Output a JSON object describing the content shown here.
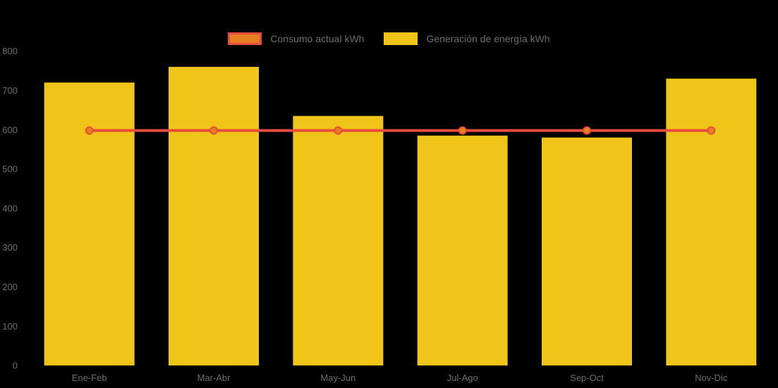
{
  "chart_data": {
    "type": "bar",
    "subtype": "bar-line-combo",
    "title": "",
    "xlabel": "",
    "ylabel": "",
    "categories": [
      "Ene-Feb",
      "Mar-Abr",
      "May-Jun",
      "Jul-Ago",
      "Sep-Oct",
      "Nov-Dic"
    ],
    "series": [
      {
        "name": "Consumo actual kWh",
        "type": "line",
        "values": [
          598,
          598,
          598,
          598,
          598,
          598
        ],
        "color": "#E74C3C",
        "marker_fill": "#E67E22",
        "marker_shape": "circle"
      },
      {
        "name": "Generación de energía kWh",
        "type": "bar",
        "values": [
          720,
          760,
          635,
          585,
          580,
          730
        ],
        "color": "#F0C419"
      }
    ],
    "ylim": [
      0,
      800
    ],
    "yticks": [
      0,
      100,
      200,
      300,
      400,
      500,
      600,
      700,
      800
    ],
    "grid": false,
    "legend_position": "top-center",
    "background_color": "#000000",
    "text_color": "#6E6E6E",
    "tick_font_size": 13,
    "legend_font_size": 14
  }
}
